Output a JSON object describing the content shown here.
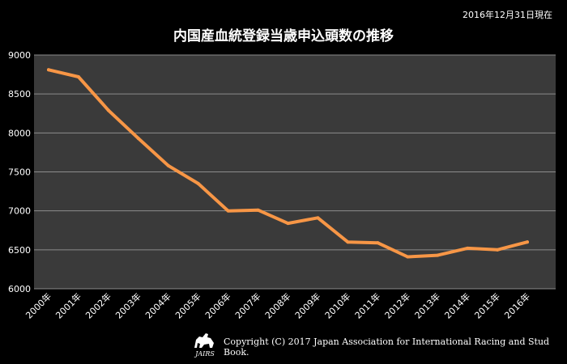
{
  "header": {
    "as_of": "2016年12月31日現在"
  },
  "footer": {
    "copyright": "Copyright (C) 2017 Japan Association for International Racing and Stud Book.",
    "logo_text": "JAIRS"
  },
  "colors": {
    "background": "#000000",
    "plot_background": "#3a3a3a",
    "line": "#f79646",
    "grid": "#8c8c8c",
    "text": "#ffffff"
  },
  "chart_data": {
    "type": "line",
    "title": "内国産血統登録当歳申込頭数の推移",
    "xlabel": "",
    "ylabel": "",
    "categories": [
      "2000年",
      "2001年",
      "2002年",
      "2003年",
      "2004年",
      "2005年",
      "2006年",
      "2007年",
      "2008年",
      "2009年",
      "2010年",
      "2011年",
      "2012年",
      "2013年",
      "2014年",
      "2015年",
      "2016年"
    ],
    "series": [
      {
        "values": [
          8810,
          8720,
          8290,
          7930,
          7580,
          7350,
          7000,
          7010,
          6840,
          6910,
          6600,
          6590,
          6410,
          6430,
          6520,
          6500,
          6600
        ]
      }
    ],
    "yticks": [
      "6000",
      "6500",
      "7000",
      "7500",
      "8000",
      "8500",
      "9000"
    ],
    "ylim": [
      6000,
      9000
    ],
    "grid": true,
    "legend": "none"
  }
}
